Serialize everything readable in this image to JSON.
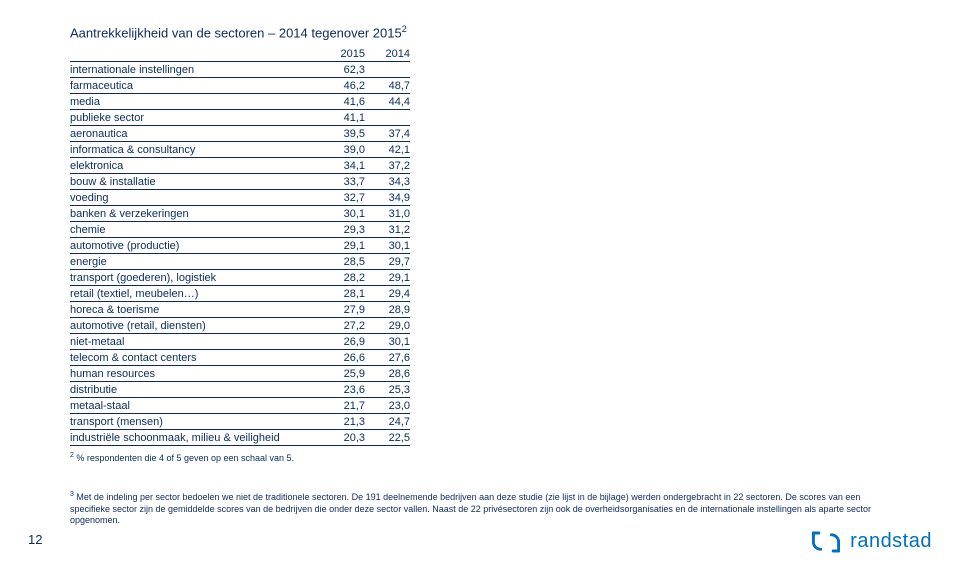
{
  "title": "Aantrekkelijkheid van de sectoren – 2014 tegenover 2015",
  "title_sup": "2",
  "table": {
    "headers": [
      "",
      "2015",
      "2014"
    ],
    "rows": [
      [
        "internationale instellingen",
        "62,3",
        ""
      ],
      [
        "farmaceutica",
        "46,2",
        "48,7"
      ],
      [
        "media",
        "41,6",
        "44,4"
      ],
      [
        "publieke sector",
        "41,1",
        ""
      ],
      [
        "aeronautica",
        "39,5",
        "37,4"
      ],
      [
        "informatica & consultancy",
        "39,0",
        "42,1"
      ],
      [
        "elektronica",
        "34,1",
        "37,2"
      ],
      [
        "bouw & installatie",
        "33,7",
        "34,3"
      ],
      [
        "voeding",
        "32,7",
        "34,9"
      ],
      [
        "banken & verzekeringen",
        "30,1",
        "31,0"
      ],
      [
        "chemie",
        "29,3",
        "31,2"
      ],
      [
        "automotive (productie)",
        "29,1",
        "30,1"
      ],
      [
        "energie",
        "28,5",
        "29,7"
      ],
      [
        "transport (goederen), logistiek",
        "28,2",
        "29,1"
      ],
      [
        "retail (textiel, meubelen…)",
        "28,1",
        "29,4"
      ],
      [
        "horeca & toerisme",
        "27,9",
        "28,9"
      ],
      [
        "automotive (retail, diensten)",
        "27,2",
        "29,0"
      ],
      [
        "niet-metaal",
        "26,9",
        "30,1"
      ],
      [
        "telecom & contact centers",
        "26,6",
        "27,6"
      ],
      [
        "human resources",
        "25,9",
        "28,6"
      ],
      [
        "distributie",
        "23,6",
        "25,3"
      ],
      [
        "metaal-staal",
        "21,7",
        "23,0"
      ],
      [
        "transport (mensen)",
        "21,3",
        "24,7"
      ],
      [
        "industriële schoonmaak, milieu & veiligheid",
        "20,3",
        "22,5"
      ]
    ]
  },
  "footnote_sup": "2",
  "footnote_text": " % respondenten die 4 of 5 geven op een schaal van 5.",
  "bottom_sup": "3",
  "bottom_text": " Met de indeling per sector bedoelen we niet de traditionele sectoren. De 191 deelnemende bedrijven aan deze studie (zie lijst in de bijlage) werden ondergebracht in 22 sectoren. De scores van een specifieke sector zijn de gemiddelde scores van de bedrijven die onder deze sector vallen. Naast de 22 privésectoren zijn ook de overheidsorganisaties en de internationale instellingen als aparte sector opgenomen.",
  "page_number": "12",
  "logo_text": "randstad",
  "colors": {
    "text": "#0a2b5c",
    "brand": "#0070bd",
    "bg": "#ffffff"
  }
}
